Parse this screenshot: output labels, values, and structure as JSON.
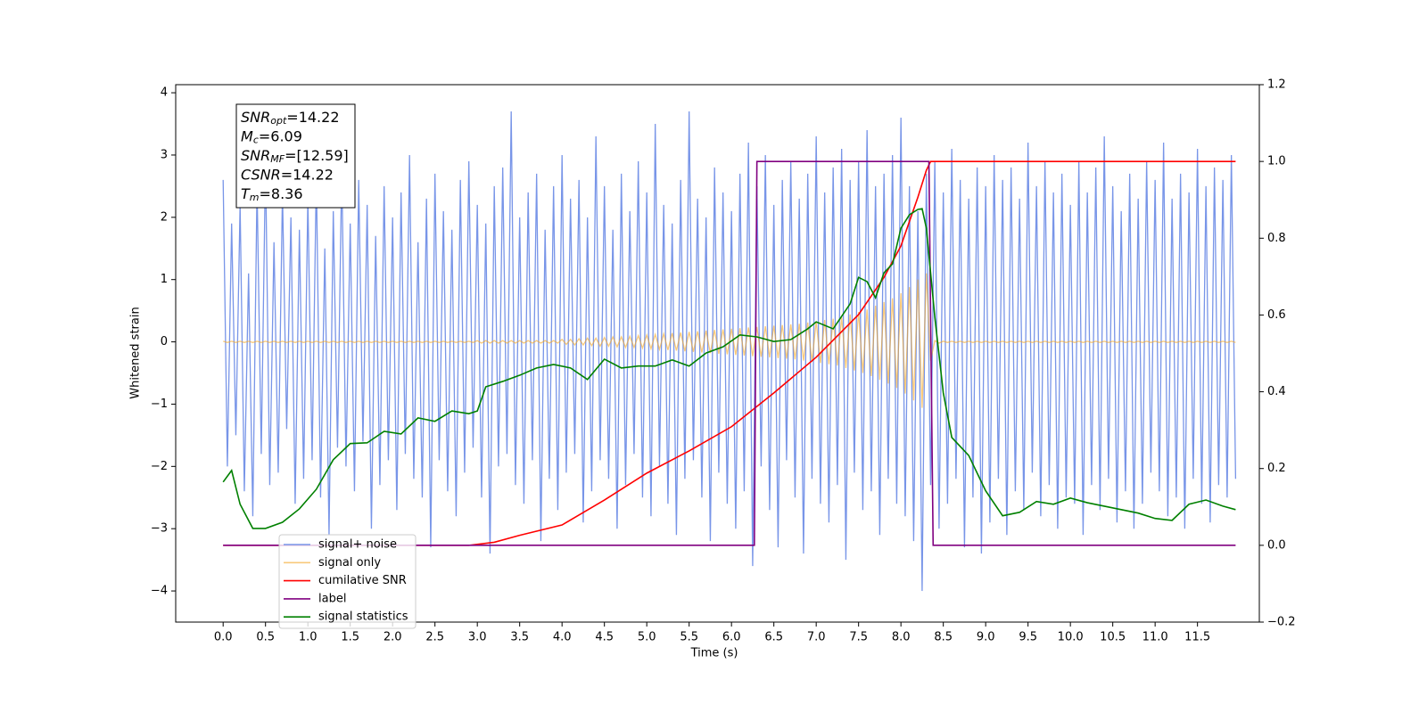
{
  "chart_data": {
    "type": "line",
    "xlabel": "Time (s)",
    "ylabel": "Whitened strain",
    "xlim": [
      -0.56,
      12.23
    ],
    "ylim": [
      -4.5,
      4.13
    ],
    "y2lim": [
      -0.2,
      1.2
    ],
    "xticks": [
      {
        "value": 0,
        "label": "0.0"
      },
      0.5,
      {
        "value": 1,
        "label": "1.0"
      },
      1.5,
      {
        "value": 2,
        "label": "2.0"
      },
      2.5,
      {
        "value": 3,
        "label": "3.0"
      },
      3.5,
      {
        "value": 4,
        "label": "4.0"
      },
      4.5,
      {
        "value": 5,
        "label": "5.0"
      },
      5.5,
      {
        "value": 6,
        "label": "6.0"
      },
      6.5,
      {
        "value": 7,
        "label": "7.0"
      },
      7.5,
      {
        "value": 8,
        "label": "8.0"
      },
      8.5,
      {
        "value": 9,
        "label": "9.0"
      },
      9.5,
      {
        "value": 10,
        "label": "10.0"
      },
      10.5,
      {
        "value": 11,
        "label": "11.0"
      },
      11.5
    ],
    "yticks": [
      {
        "value": -4,
        "label": "−4"
      },
      {
        "value": -3,
        "label": "−3"
      },
      {
        "value": -2,
        "label": "−2"
      },
      {
        "value": -1,
        "label": "−1"
      },
      0,
      1,
      2,
      3,
      4
    ],
    "y2ticks": [
      {
        "value": -0.2,
        "label": "−0.2"
      },
      {
        "value": 0,
        "label": "0.0"
      },
      0.2,
      0.4,
      0.6,
      0.8,
      {
        "value": 1,
        "label": "1.0"
      },
      1.2
    ],
    "legend": "lower left",
    "annotation": [
      {
        "symbol": "SNR",
        "subscript": "opt",
        "text": "=14.22"
      },
      {
        "symbol": "M",
        "subscript": "c",
        "text": "=6.09"
      },
      {
        "symbol": "SNR",
        "subscript": "MF",
        "text": "=[12.59]"
      },
      {
        "symbol": "CSNR",
        "subscript": "",
        "text": "=14.22"
      },
      {
        "symbol": "T",
        "subscript": "m",
        "text": "=8.36"
      }
    ],
    "x": [
      0,
      0.05,
      0.1,
      0.15,
      0.2,
      0.25,
      0.3,
      0.35,
      0.4,
      0.45,
      0.5,
      0.55,
      0.6,
      0.65,
      0.7,
      0.75,
      0.8,
      0.85,
      0.9,
      0.95,
      1,
      1.05,
      1.1,
      1.15,
      1.2,
      1.25,
      1.3,
      1.35,
      1.4,
      1.45,
      1.5,
      1.55,
      1.6,
      1.65,
      1.7,
      1.75,
      1.8,
      1.85,
      1.9,
      1.95,
      2,
      2.05,
      2.1,
      2.15,
      2.2,
      2.25,
      2.3,
      2.35,
      2.4,
      2.45,
      2.5,
      2.55,
      2.6,
      2.65,
      2.7,
      2.75,
      2.8,
      2.85,
      2.9,
      2.95,
      3,
      3.05,
      3.1,
      3.15,
      3.2,
      3.25,
      3.3,
      3.35,
      3.4,
      3.45,
      3.5,
      3.55,
      3.6,
      3.65,
      3.7,
      3.75,
      3.8,
      3.85,
      3.9,
      3.95,
      4,
      4.05,
      4.1,
      4.15,
      4.2,
      4.25,
      4.3,
      4.35,
      4.4,
      4.45,
      4.5,
      4.55,
      4.6,
      4.65,
      4.7,
      4.75,
      4.8,
      4.85,
      4.9,
      4.95,
      5,
      5.05,
      5.1,
      5.15,
      5.2,
      5.25,
      5.3,
      5.35,
      5.4,
      5.45,
      5.5,
      5.55,
      5.6,
      5.65,
      5.7,
      5.75,
      5.8,
      5.85,
      5.9,
      5.95,
      6,
      6.05,
      6.1,
      6.15,
      6.2,
      6.25,
      6.3,
      6.35,
      6.4,
      6.45,
      6.5,
      6.55,
      6.6,
      6.65,
      6.7,
      6.75,
      6.8,
      6.85,
      6.9,
      6.95,
      7,
      7.05,
      7.1,
      7.15,
      7.2,
      7.25,
      7.3,
      7.35,
      7.4,
      7.45,
      7.5,
      7.55,
      7.6,
      7.65,
      7.7,
      7.75,
      7.8,
      7.85,
      7.9,
      7.95,
      8,
      8.05,
      8.1,
      8.15,
      8.2,
      8.25,
      8.3,
      8.35,
      8.4,
      8.45,
      8.5,
      8.55,
      8.6,
      8.65,
      8.7,
      8.75,
      8.8,
      8.85,
      8.9,
      8.95,
      9,
      9.05,
      9.1,
      9.15,
      9.2,
      9.25,
      9.3,
      9.35,
      9.4,
      9.45,
      9.5,
      9.55,
      9.6,
      9.65,
      9.7,
      9.75,
      9.8,
      9.85,
      9.9,
      9.95,
      10,
      10.05,
      10.1,
      10.15,
      10.2,
      10.25,
      10.3,
      10.35,
      10.4,
      10.45,
      10.5,
      10.55,
      10.6,
      10.65,
      10.7,
      10.75,
      10.8,
      10.85,
      10.9,
      10.95,
      11,
      11.05,
      11.1,
      11.15,
      11.2,
      11.25,
      11.3,
      11.35,
      11.4,
      11.45,
      11.5,
      11.55,
      11.6,
      11.65,
      11.7,
      11.75,
      11.8,
      11.85,
      11.9,
      11.95
    ],
    "series": [
      {
        "name": "signal+ noise",
        "color": "#7895e8",
        "values": [
          2.6,
          -2.0,
          1.9,
          -1.5,
          2.2,
          -2.4,
          1.1,
          -2.8,
          2.5,
          -1.8,
          2.9,
          -2.3,
          1.6,
          -2.1,
          2.4,
          -1.4,
          2.0,
          -2.6,
          1.8,
          -2.2,
          2.3,
          -1.9,
          2.7,
          -2.5,
          1.5,
          -3.1,
          2.1,
          -1.7,
          2.8,
          -2.0,
          1.9,
          -2.4,
          2.6,
          -1.6,
          2.2,
          -3.0,
          1.7,
          -2.3,
          2.5,
          -1.9,
          2.0,
          -2.7,
          2.4,
          -1.8,
          3.0,
          -2.2,
          1.6,
          -2.5,
          2.3,
          -3.3,
          2.7,
          -1.9,
          2.1,
          -2.4,
          1.8,
          -2.8,
          2.6,
          -2.1,
          2.9,
          -1.7,
          2.2,
          -2.5,
          1.9,
          -3.4,
          2.5,
          -2.0,
          2.8,
          -1.8,
          3.7,
          -2.3,
          2.0,
          -2.6,
          2.4,
          -1.9,
          2.7,
          -3.2,
          1.8,
          -2.2,
          2.5,
          -2.7,
          3.0,
          -2.1,
          2.3,
          -1.8,
          2.6,
          -2.9,
          2.0,
          -2.4,
          3.3,
          -1.9,
          2.5,
          -2.2,
          1.8,
          -3.0,
          2.7,
          -2.3,
          2.1,
          -1.8,
          2.9,
          -2.5,
          2.4,
          -2.8,
          3.5,
          -2.0,
          2.2,
          -2.6,
          1.9,
          -3.1,
          2.6,
          -2.2,
          3.7,
          -1.9,
          2.3,
          -2.5,
          2.0,
          -3.2,
          2.8,
          -2.1,
          2.4,
          -2.6,
          2.1,
          -3.0,
          2.7,
          -2.4,
          3.2,
          -3.6,
          2.5,
          -2.0,
          3.0,
          -2.7,
          2.2,
          -3.3,
          2.6,
          -1.9,
          2.9,
          -2.5,
          2.3,
          -3.4,
          2.7,
          -2.2,
          3.3,
          -2.6,
          2.4,
          -2.9,
          2.8,
          -2.3,
          3.1,
          -3.5,
          2.6,
          -2.1,
          2.9,
          -2.7,
          3.4,
          -2.4,
          2.5,
          -3.1,
          2.7,
          -2.2,
          3.0,
          -2.6,
          3.6,
          -2.8,
          2.5,
          -3.2,
          2.1,
          -4.0,
          2.7,
          -2.3,
          2.9,
          -3.0,
          2.4,
          -2.6,
          3.1,
          -2.2,
          2.6,
          -3.3,
          2.3,
          -2.5,
          2.8,
          -3.4,
          2.5,
          -2.9,
          3.0,
          -2.2,
          2.6,
          -3.1,
          2.8,
          -2.4,
          2.3,
          -2.7,
          3.2,
          -2.1,
          2.5,
          -2.8,
          2.9,
          -2.3,
          2.4,
          -3.0,
          2.7,
          -2.5,
          2.2,
          -2.6,
          2.9,
          -3.1,
          2.4,
          -2.3,
          2.8,
          -2.7,
          3.3,
          -2.2,
          2.5,
          -2.9,
          2.1,
          -2.4,
          2.7,
          -3.0,
          2.3,
          -2.6,
          2.9,
          -2.1,
          2.6,
          -2.4,
          3.2,
          -2.8,
          2.3,
          -2.5,
          2.7,
          -3.0,
          2.4,
          -2.2,
          3.1,
          -2.6,
          2.5,
          -2.9,
          2.8,
          -2.3,
          2.6,
          -2.5,
          3.0,
          -2.2
        ]
      },
      {
        "name": "signal only",
        "color": "#f5a623",
        "values": [
          0.01,
          -0.01,
          0.01,
          -0.01,
          0.01,
          -0.01,
          0.01,
          -0.01,
          0.01,
          -0.01,
          0.01,
          -0.01,
          0.01,
          -0.01,
          0.01,
          -0.01,
          0.01,
          -0.01,
          0.01,
          -0.01,
          0.01,
          -0.01,
          0.01,
          -0.01,
          0.01,
          -0.01,
          0.01,
          -0.01,
          0.01,
          -0.01,
          0.01,
          -0.01,
          0.01,
          -0.01,
          0.01,
          -0.01,
          0.01,
          -0.01,
          0.01,
          -0.01,
          0.01,
          -0.01,
          0.01,
          -0.01,
          0.01,
          -0.01,
          0.01,
          -0.01,
          0.01,
          -0.01,
          0.01,
          -0.01,
          0.01,
          -0.01,
          0.01,
          -0.01,
          0.01,
          -0.01,
          0.01,
          -0.01,
          0.02,
          -0.02,
          0.02,
          -0.02,
          0.02,
          -0.02,
          0.02,
          -0.02,
          0.02,
          -0.02,
          0.02,
          -0.02,
          0.02,
          -0.02,
          0.02,
          -0.02,
          0.02,
          -0.02,
          0.02,
          -0.02,
          0.04,
          -0.04,
          0.04,
          -0.05,
          0.05,
          -0.05,
          0.06,
          -0.06,
          0.06,
          -0.07,
          0.07,
          -0.07,
          0.08,
          -0.08,
          0.08,
          -0.09,
          0.09,
          -0.09,
          0.1,
          -0.1,
          0.11,
          -0.11,
          0.12,
          -0.12,
          0.13,
          -0.13,
          0.14,
          -0.14,
          0.15,
          -0.15,
          0.16,
          -0.16,
          0.17,
          -0.17,
          0.18,
          -0.18,
          0.19,
          -0.19,
          0.2,
          -0.2,
          0.21,
          -0.21,
          0.22,
          -0.22,
          0.23,
          -0.23,
          0.24,
          -0.24,
          0.25,
          -0.25,
          0.26,
          -0.26,
          0.27,
          -0.27,
          0.28,
          -0.28,
          0.29,
          -0.3,
          0.31,
          -0.32,
          0.33,
          -0.34,
          0.35,
          -0.36,
          0.37,
          -0.38,
          0.4,
          -0.42,
          0.44,
          -0.46,
          0.48,
          -0.5,
          0.52,
          -0.55,
          0.58,
          -0.61,
          0.64,
          -0.67,
          0.7,
          -0.74,
          0.78,
          -0.83,
          0.88,
          -0.94,
          1.0,
          -1.06,
          1.1,
          -0.3,
          0.02,
          -0.02,
          0.01,
          -0.01,
          0.01,
          -0.01,
          0.01,
          -0.01,
          0.01,
          -0.01,
          0.01,
          -0.01,
          0.01,
          -0.01,
          0.01,
          -0.01,
          0.01,
          -0.01,
          0.01,
          -0.01,
          0.01,
          -0.01,
          0.01,
          -0.01,
          0.01,
          -0.01,
          0.01,
          -0.01,
          0.01,
          -0.01,
          0.01,
          -0.01,
          0.01,
          -0.01,
          0.01,
          -0.01,
          0.01,
          -0.01,
          0.01,
          -0.01,
          0.01,
          -0.01,
          0.01,
          -0.01,
          0.01,
          -0.01,
          0.01,
          -0.01,
          0.01,
          -0.01,
          0.01,
          -0.01,
          0.01,
          -0.01,
          0.01,
          -0.01,
          0.01,
          -0.01,
          0.01,
          -0.01,
          0.01,
          -0.01,
          0.01,
          -0.01,
          0.01,
          -0.01,
          0.01,
          -0.01,
          0.01,
          -0.01,
          0.01,
          -0.01
        ]
      },
      {
        "name": "cumilative SNR",
        "color": "#ff0000",
        "axis": "y2",
        "x": [
          0,
          2.9,
          3.2,
          3.5,
          4.0,
          4.5,
          5.0,
          5.5,
          6.0,
          6.5,
          7.0,
          7.5,
          7.8,
          8.0,
          8.2,
          8.3,
          8.35,
          11.95
        ],
        "values": [
          0,
          0,
          0.008,
          0.026,
          0.053,
          0.118,
          0.188,
          0.246,
          0.309,
          0.397,
          0.49,
          0.601,
          0.698,
          0.78,
          0.907,
          0.977,
          1.0,
          1.0
        ]
      },
      {
        "name": "label",
        "color": "#800080",
        "axis": "y2",
        "x": [
          0,
          6.27,
          6.3,
          8.33,
          8.38,
          11.95
        ],
        "values": [
          0,
          0,
          1,
          1,
          0,
          0
        ]
      },
      {
        "name": "signal statistics",
        "color": "#008000",
        "axis": "y2",
        "x": [
          0,
          0.1,
          0.2,
          0.35,
          0.5,
          0.7,
          0.9,
          1.1,
          1.3,
          1.5,
          1.7,
          1.9,
          2.1,
          2.3,
          2.5,
          2.7,
          2.9,
          3.0,
          3.1,
          3.3,
          3.5,
          3.7,
          3.9,
          4.1,
          4.3,
          4.5,
          4.7,
          4.9,
          5.1,
          5.3,
          5.5,
          5.7,
          5.9,
          6.1,
          6.3,
          6.5,
          6.7,
          6.9,
          7.0,
          7.2,
          7.4,
          7.5,
          7.6,
          7.7,
          7.8,
          7.9,
          8.0,
          8.1,
          8.2,
          8.25,
          8.3,
          8.4,
          8.5,
          8.6,
          8.8,
          9.0,
          9.2,
          9.4,
          9.6,
          9.8,
          10.0,
          10.2,
          10.4,
          10.6,
          10.8,
          11.0,
          11.2,
          11.4,
          11.6,
          11.8,
          11.95
        ],
        "values": [
          0.165,
          0.195,
          0.107,
          0.044,
          0.044,
          0.06,
          0.095,
          0.146,
          0.223,
          0.265,
          0.267,
          0.297,
          0.29,
          0.332,
          0.323,
          0.35,
          0.343,
          0.35,
          0.413,
          0.427,
          0.443,
          0.462,
          0.471,
          0.462,
          0.432,
          0.485,
          0.462,
          0.467,
          0.467,
          0.483,
          0.467,
          0.501,
          0.517,
          0.548,
          0.543,
          0.531,
          0.536,
          0.564,
          0.582,
          0.564,
          0.629,
          0.698,
          0.687,
          0.645,
          0.71,
          0.733,
          0.826,
          0.861,
          0.875,
          0.877,
          0.826,
          0.594,
          0.397,
          0.281,
          0.234,
          0.142,
          0.077,
          0.086,
          0.114,
          0.107,
          0.123,
          0.111,
          0.102,
          0.093,
          0.084,
          0.07,
          0.065,
          0.107,
          0.118,
          0.102,
          0.093
        ]
      }
    ]
  }
}
